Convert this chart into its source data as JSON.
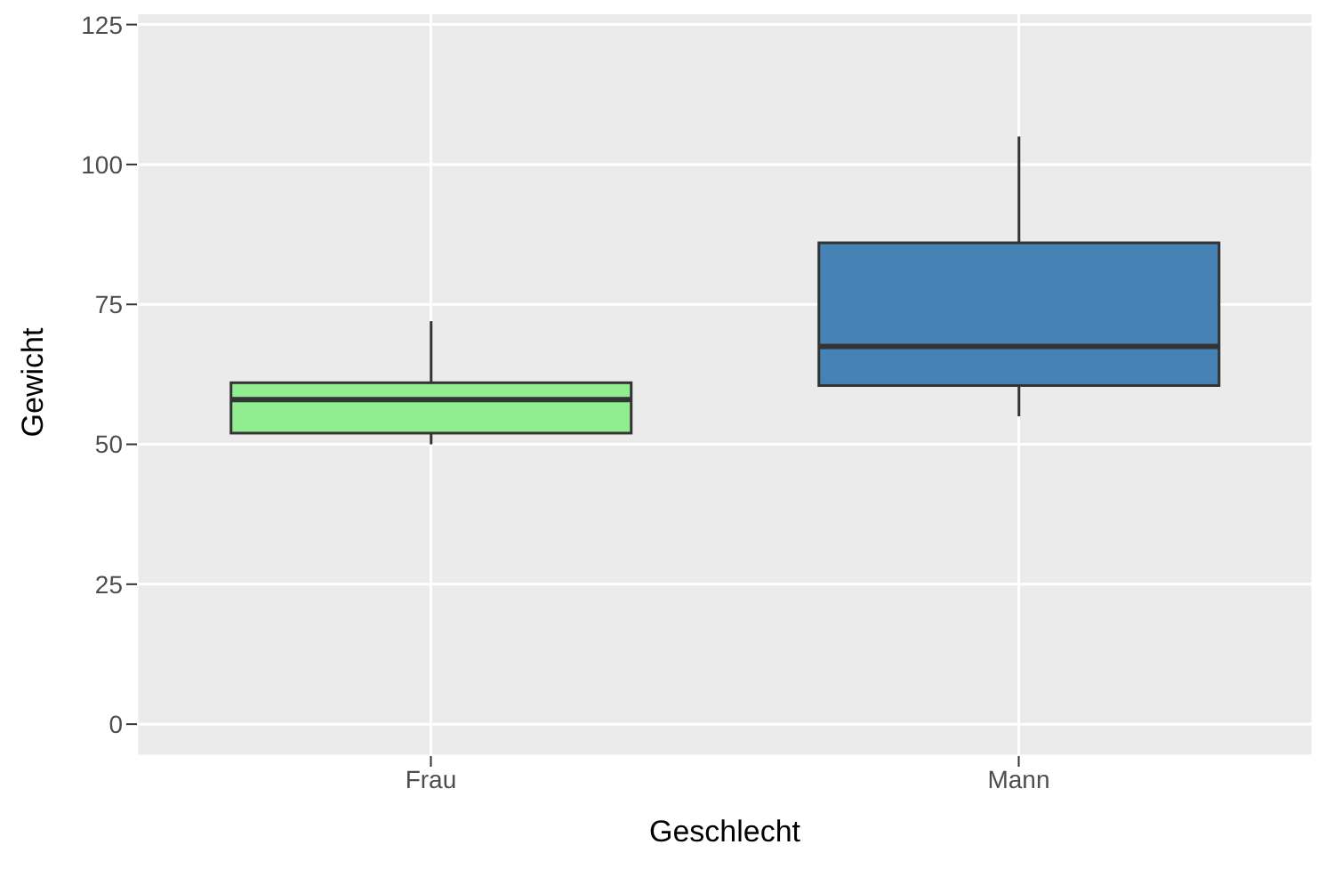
{
  "chart_data": {
    "type": "box",
    "xlabel": "Geschlecht",
    "ylabel": "Gewicht",
    "categories": [
      "Frau",
      "Mann"
    ],
    "colors": [
      "#90ee90",
      "#4682b4"
    ],
    "boxes": [
      {
        "low": 50,
        "q1": 52,
        "median": 58,
        "q3": 61,
        "high": 72
      },
      {
        "low": 55,
        "q1": 60.5,
        "median": 67.5,
        "q3": 86,
        "high": 105
      }
    ],
    "ylim": [
      -5.7,
      127.8
    ],
    "yticks": [
      0,
      25,
      50,
      75,
      100,
      125
    ],
    "grid": true
  }
}
